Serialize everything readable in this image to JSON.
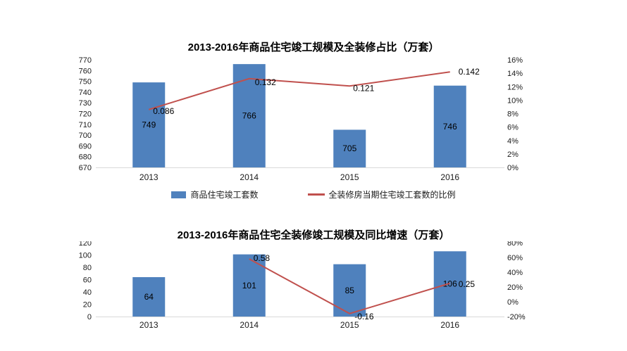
{
  "colors": {
    "bar": "#4F81BD",
    "line": "#C0504D",
    "axis_line": "#D9D9D9",
    "background": "#FFFFFF"
  },
  "chart_data": [
    {
      "type": "bar-line-combo",
      "title": "2013-2016年商品住宅竣工规模及全装修占比（万套）",
      "categories": [
        "2013",
        "2014",
        "2015",
        "2016"
      ],
      "bar_series": {
        "name": "商品住宅竣工套数",
        "values": [
          749,
          766,
          705,
          746
        ],
        "labels": [
          "749",
          "766",
          "705",
          "746"
        ],
        "color": "#4F81BD",
        "axis": "left"
      },
      "line_series": {
        "name": "全装修房当期住宅竣工套数的比例",
        "values": [
          0.086,
          0.132,
          0.121,
          0.142
        ],
        "labels": [
          "0.086",
          "0.132",
          "0.121",
          "0.142"
        ],
        "color": "#C0504D",
        "axis": "right"
      },
      "left_axis": {
        "min": 670,
        "max": 770,
        "ticks": [
          "770",
          "760",
          "750",
          "740",
          "730",
          "720",
          "710",
          "700",
          "690",
          "680",
          "670"
        ]
      },
      "right_axis": {
        "min": 0,
        "max": 0.16,
        "ticks": [
          "16%",
          "14%",
          "12%",
          "10%",
          "8%",
          "6%",
          "4%",
          "2%",
          "0%"
        ]
      },
      "grid": false,
      "legend_position": "bottom",
      "legend": [
        "商品住宅竣工套数",
        "全装修房当期住宅竣工套数的比例"
      ]
    },
    {
      "type": "bar-line-combo",
      "title": "2013-2016年商品住宅全装修竣工规模及同比增速（万套）",
      "categories": [
        "2013",
        "2014",
        "2015",
        "2016"
      ],
      "bar_series": {
        "values": [
          64,
          101,
          85,
          106
        ],
        "labels": [
          "64",
          "101",
          "85",
          "106"
        ],
        "color": "#4F81BD",
        "axis": "left"
      },
      "line_series": {
        "values": [
          null,
          0.58,
          -0.16,
          0.25
        ],
        "labels": [
          "",
          "0.58",
          "-0.16",
          "0.25"
        ],
        "color": "#C0504D",
        "axis": "right"
      },
      "left_axis": {
        "min": 0,
        "max": 120,
        "ticks": [
          "120",
          "100",
          "80",
          "60",
          "40",
          "20",
          "0"
        ]
      },
      "right_axis": {
        "min": -0.2,
        "max": 0.8,
        "ticks": [
          "80%",
          "60%",
          "40%",
          "20%",
          "0%",
          "-20%"
        ]
      },
      "grid": false,
      "legend_position": "none",
      "legend": []
    }
  ]
}
